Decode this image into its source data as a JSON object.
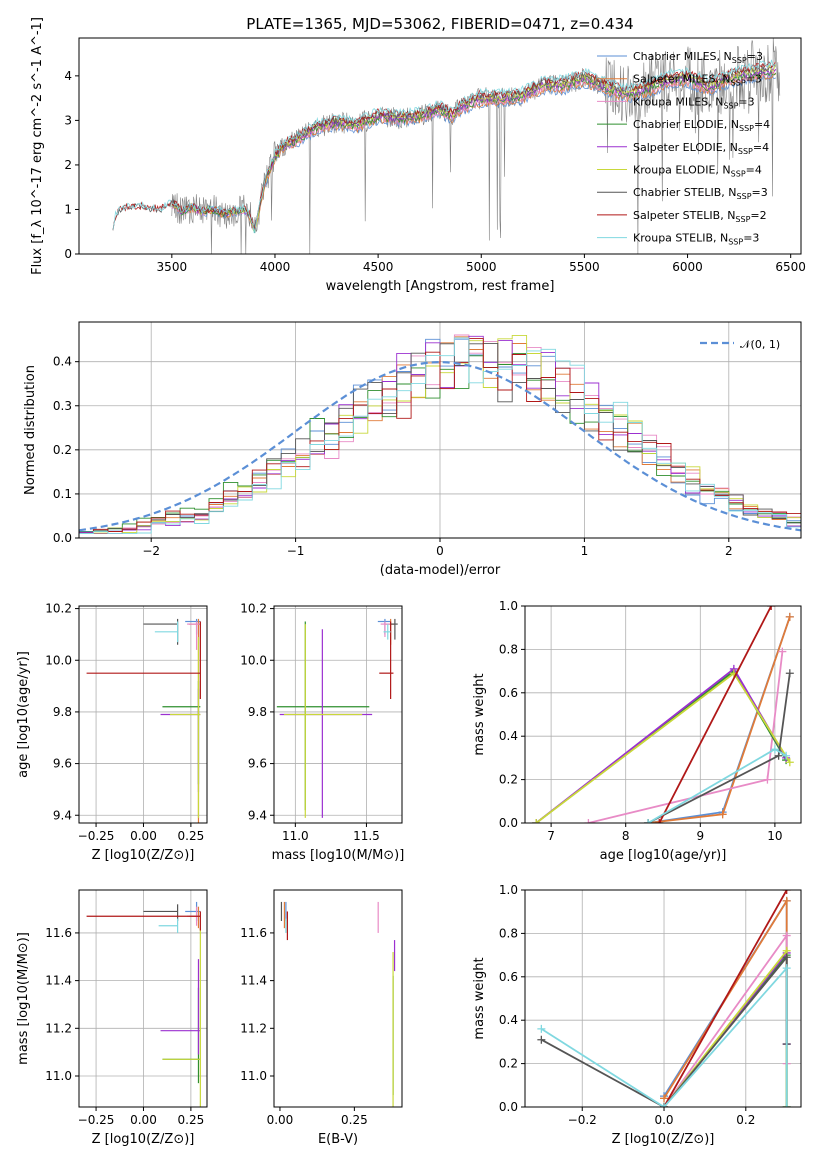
{
  "figure": {
    "title": "PLATE=1365, MJD=53062, FIBERID=0471, z=0.434",
    "series_colors": [
      "#5b8fd6",
      "#e07b39",
      "#e88bc6",
      "#2f8f2f",
      "#9b30d0",
      "#c8d83a",
      "#555555",
      "#b01818",
      "#80d8e0"
    ],
    "data_color": "#808080",
    "normal_color": "#5b8fd6",
    "legend_labels": [
      "Chabrier MILES, N_SSP=3",
      "Salpeter MILES, N_SSP=3",
      "Kroupa MILES, N_SSP=3",
      "Chabrier ELODIE, N_SSP=4",
      "Salpeter ELODIE, N_SSP=4",
      "Kroupa ELODIE, N_SSP=4",
      "Chabrier STELIB, N_SSP=3",
      "Salpeter STELIB, N_SSP=2",
      "Kroupa STELIB, N_SSP=3"
    ]
  },
  "chart_data": [
    {
      "id": "spectrum",
      "type": "line",
      "xlabel": "wavelength [Angstrom, rest frame]",
      "ylabel": "Flux [f_λ 10^-17 erg cm^-2 s^-1 A^-1]",
      "xlim": [
        3050,
        6550
      ],
      "ylim": [
        0,
        4.85
      ],
      "xticks": [
        3500,
        4000,
        4500,
        5000,
        5500,
        6000,
        6500
      ],
      "yticks": [
        0,
        1,
        2,
        3,
        4
      ],
      "continuum": {
        "x": [
          3215,
          3230,
          3260,
          3300,
          3350,
          3400,
          3450,
          3500,
          3550,
          3600,
          3650,
          3700,
          3750,
          3800,
          3850,
          3880,
          3900,
          3950,
          4000,
          4050,
          4100,
          4200,
          4300,
          4400,
          4500,
          4600,
          4700,
          4800,
          4860,
          4900,
          5000,
          5100,
          5200,
          5300,
          5400,
          5500,
          5600,
          5700,
          5800,
          5900,
          6000,
          6100,
          6200,
          6300,
          6430
        ],
        "y": [
          0.6,
          0.9,
          1.0,
          1.05,
          1.05,
          1.0,
          1.0,
          1.15,
          0.95,
          1.05,
          0.95,
          1.0,
          0.9,
          0.95,
          1.0,
          0.85,
          0.5,
          1.6,
          2.2,
          2.45,
          2.55,
          2.85,
          2.95,
          2.9,
          3.1,
          3.05,
          3.1,
          3.25,
          3.1,
          3.3,
          3.5,
          3.5,
          3.55,
          3.8,
          3.8,
          3.95,
          3.75,
          3.6,
          3.7,
          3.9,
          3.95,
          3.75,
          3.95,
          4.05,
          4.15
        ]
      },
      "data_range": [
        3500,
        6450
      ]
    },
    {
      "id": "residuals",
      "type": "line",
      "xlabel": "(data-model)/error",
      "ylabel": "Normed distribution",
      "xlim": [
        -2.5,
        2.5
      ],
      "ylim": [
        0,
        0.49
      ],
      "xticks": [
        -2,
        -1,
        0,
        1,
        2
      ],
      "yticks": [
        0.0,
        0.1,
        0.2,
        0.3,
        0.4
      ],
      "legend": "𝒩(0, 1)",
      "bins": [
        -2.5,
        2.5,
        50
      ]
    },
    {
      "id": "age-vs-Z",
      "type": "scatter",
      "xlabel": "Z [log10(Z/Z⊙)]",
      "ylabel": "age [log10(age/yr)]",
      "xlim": [
        -0.34,
        0.335
      ],
      "ylim": [
        9.37,
        10.21
      ],
      "xticks": [
        -0.25,
        0.0,
        0.25
      ],
      "yticks": [
        9.4,
        9.6,
        9.8,
        10.0,
        10.2
      ],
      "points": [
        {
          "x": 0.28,
          "y": 10.15,
          "xerr": [
            0.06,
            0.02
          ],
          "yerr": [
            0.05,
            0.01
          ]
        },
        {
          "x": 0.29,
          "y": 10.14,
          "xerr": [
            0.05,
            0.01
          ],
          "yerr": [
            0.8,
            0.02
          ]
        },
        {
          "x": 0.28,
          "y": 10.14,
          "xerr": [
            0.05,
            0.02
          ],
          "yerr": [
            0.1,
            0.01
          ]
        },
        {
          "x": 0.29,
          "y": 9.82,
          "xerr": [
            0.19,
            0.01
          ],
          "yerr": [
            0.3,
            0.1
          ]
        },
        {
          "x": 0.29,
          "y": 9.79,
          "xerr": [
            0.2,
            0.01
          ],
          "yerr": [
            0.3,
            0.1
          ]
        },
        {
          "x": 0.29,
          "y": 9.79,
          "xerr": [
            0.15,
            0.01
          ],
          "yerr": [
            0.4,
            0.3
          ]
        },
        {
          "x": 0.18,
          "y": 10.14,
          "xerr": [
            0.18,
            0.0
          ],
          "yerr": [
            0.08,
            0.02
          ]
        },
        {
          "x": 0.3,
          "y": 9.95,
          "xerr": [
            0.6,
            0.0
          ],
          "yerr": [
            0.1,
            0.2
          ]
        },
        {
          "x": 0.18,
          "y": 10.11,
          "xerr": [
            0.12,
            0.0
          ],
          "yerr": [
            0.04,
            0.04
          ]
        }
      ]
    },
    {
      "id": "age-vs-mass",
      "type": "scatter",
      "xlabel": "mass [log10(M/M⊙)]",
      "ylabel": "",
      "xlim": [
        10.85,
        11.75
      ],
      "ylim": [
        9.37,
        10.21
      ],
      "xticks": [
        11.0,
        11.5
      ],
      "yticks": [
        9.4,
        9.6,
        9.8,
        10.0,
        10.2
      ],
      "points": [
        {
          "x": 11.63,
          "y": 10.15,
          "xerr": [
            0.05,
            0.04
          ],
          "yerr": [
            0.05,
            0.01
          ]
        },
        {
          "x": 11.67,
          "y": 10.14,
          "xerr": [
            0.04,
            0.03
          ],
          "yerr": [
            0.08,
            0.02
          ]
        },
        {
          "x": 11.63,
          "y": 10.14,
          "xerr": [
            0.03,
            0.04
          ],
          "yerr": [
            0.05,
            0.01
          ]
        },
        {
          "x": 11.07,
          "y": 9.82,
          "xerr": [
            0.2,
            0.45
          ],
          "yerr": [
            0.4,
            0.33
          ]
        },
        {
          "x": 11.19,
          "y": 9.79,
          "xerr": [
            0.3,
            0.35
          ],
          "yerr": [
            0.4,
            0.33
          ]
        },
        {
          "x": 11.07,
          "y": 9.79,
          "xerr": [
            0.15,
            0.4
          ],
          "yerr": [
            0.4,
            0.35
          ]
        },
        {
          "x": 11.7,
          "y": 10.14,
          "xerr": [
            0.03,
            0.02
          ],
          "yerr": [
            0.06,
            0.02
          ]
        },
        {
          "x": 11.67,
          "y": 9.95,
          "xerr": [
            0.08,
            0.02
          ],
          "yerr": [
            0.1,
            0.2
          ]
        },
        {
          "x": 11.65,
          "y": 10.11,
          "xerr": [
            0.03,
            0.02
          ],
          "yerr": [
            0.03,
            0.03
          ]
        }
      ]
    },
    {
      "id": "weight-vs-age",
      "type": "line",
      "xlabel": "age [log10(age/yr)]",
      "ylabel": "mass weight",
      "xlim": [
        6.65,
        10.35
      ],
      "ylim": [
        0,
        1.0
      ],
      "xticks": [
        7,
        8,
        9,
        10
      ],
      "yticks": [
        0.0,
        0.2,
        0.4,
        0.6,
        0.8,
        1.0
      ],
      "series": [
        {
          "x": [
            8.3,
            9.3,
            10.2
          ],
          "y": [
            0.0,
            0.05,
            0.95
          ]
        },
        {
          "x": [
            8.3,
            9.3,
            10.2
          ],
          "y": [
            0.0,
            0.04,
            0.95
          ]
        },
        {
          "x": [
            7.5,
            9.9,
            10.1
          ],
          "y": [
            0.0,
            0.2,
            0.79
          ]
        },
        {
          "x": [
            6.8,
            9.45,
            10.15
          ],
          "y": [
            0.0,
            0.7,
            0.29
          ]
        },
        {
          "x": [
            6.8,
            9.45,
            10.15
          ],
          "y": [
            0.0,
            0.71,
            0.3
          ]
        },
        {
          "x": [
            6.8,
            9.45,
            10.2
          ],
          "y": [
            0.0,
            0.69,
            0.28
          ]
        },
        {
          "x": [
            8.3,
            10.05,
            10.2
          ],
          "y": [
            0.0,
            0.31,
            0.69
          ]
        },
        {
          "x": [
            8.45,
            9.95
          ],
          "y": [
            0.0,
            1.0
          ]
        },
        {
          "x": [
            8.3,
            10.0,
            10.15
          ],
          "y": [
            0.0,
            0.34,
            0.31
          ]
        }
      ]
    },
    {
      "id": "mass-vs-Z",
      "type": "scatter",
      "xlabel": "Z [log10(Z/Z⊙)]",
      "ylabel": "mass [log10(M/M⊙)]",
      "xlim": [
        -0.34,
        0.335
      ],
      "ylim": [
        10.87,
        11.78
      ],
      "xticks": [
        -0.25,
        0.0,
        0.25
      ],
      "yticks": [
        11.0,
        11.2,
        11.4,
        11.6
      ],
      "points": [
        {
          "x": 0.28,
          "y": 11.69,
          "xerr": [
            0.06,
            0.02
          ],
          "yerr": [
            0.04,
            0.04
          ]
        },
        {
          "x": 0.29,
          "y": 11.67,
          "xerr": [
            0.05,
            0.01
          ],
          "yerr": [
            0.05,
            0.04
          ]
        },
        {
          "x": 0.28,
          "y": 11.67,
          "xerr": [
            0.05,
            0.02
          ],
          "yerr": [
            0.04,
            0.04
          ]
        },
        {
          "x": 0.29,
          "y": 11.07,
          "xerr": [
            0.19,
            0.01
          ],
          "yerr": [
            0.1,
            0.3
          ]
        },
        {
          "x": 0.29,
          "y": 11.19,
          "xerr": [
            0.2,
            0.01
          ],
          "yerr": [
            0.1,
            0.3
          ]
        },
        {
          "x": 0.3,
          "y": 11.07,
          "xerr": [
            0.2,
            0.0
          ],
          "yerr": [
            0.2,
            0.55
          ]
        },
        {
          "x": 0.18,
          "y": 11.69,
          "xerr": [
            0.18,
            0.0
          ],
          "yerr": [
            0.04,
            0.03
          ]
        },
        {
          "x": 0.3,
          "y": 11.67,
          "xerr": [
            0.6,
            0.0
          ],
          "yerr": [
            0.06,
            0.02
          ]
        },
        {
          "x": 0.18,
          "y": 11.63,
          "xerr": [
            0.1,
            0.0
          ],
          "yerr": [
            0.03,
            0.03
          ]
        }
      ]
    },
    {
      "id": "mass-vs-ebv",
      "type": "scatter",
      "xlabel": "E(B-V)",
      "ylabel": "",
      "xlim": [
        -0.02,
        0.41
      ],
      "ylim": [
        10.87,
        11.78
      ],
      "xticks": [
        0.0,
        0.25
      ],
      "yticks": [
        11.0,
        11.2,
        11.4,
        11.6
      ],
      "points": [
        {
          "x": 0.02,
          "y": 11.69,
          "yerr": [
            0.04,
            0.04
          ]
        },
        {
          "x": 0.015,
          "y": 11.67,
          "yerr": [
            0.05,
            0.06
          ]
        },
        {
          "x": 0.33,
          "y": 11.67,
          "yerr": [
            0.07,
            0.06
          ]
        },
        {
          "x": 0.38,
          "y": 11.07,
          "yerr": [
            0.15,
            0.35
          ]
        },
        {
          "x": 0.385,
          "y": 11.49,
          "yerr": [
            0.05,
            0.08
          ]
        },
        {
          "x": 0.38,
          "y": 11.07,
          "yerr": [
            0.2,
            0.45
          ]
        },
        {
          "x": 0.005,
          "y": 11.69,
          "yerr": [
            0.04,
            0.04
          ]
        },
        {
          "x": 0.025,
          "y": 11.67,
          "yerr": [
            0.1,
            0.02
          ]
        },
        {
          "x": 0.02,
          "y": 11.63,
          "yerr": [
            0.03,
            0.03
          ]
        }
      ]
    },
    {
      "id": "weight-vs-Z",
      "type": "line",
      "xlabel": "Z [log10(Z/Z⊙)]",
      "ylabel": "mass weight",
      "xlim": [
        -0.34,
        0.335
      ],
      "ylim": [
        0,
        1.0
      ],
      "xticks": [
        -0.2,
        0.0,
        0.2
      ],
      "yticks": [
        0.0,
        0.2,
        0.4,
        0.6,
        0.8,
        1.0
      ],
      "series": [
        {
          "x": [
            0.0,
            0.3,
            0.3
          ],
          "y": [
            0.05,
            0.95,
            0.0
          ]
        },
        {
          "x": [
            0.0,
            0.3,
            0.3
          ],
          "y": [
            0.04,
            0.95,
            0.0
          ]
        },
        {
          "x": [
            0.0,
            0.3,
            0.3
          ],
          "y": [
            0.0,
            0.79,
            0.2
          ]
        },
        {
          "x": [
            0.0,
            0.3,
            0.3
          ],
          "y": [
            0.0,
            0.7,
            0.0
          ]
        },
        {
          "x": [
            0.0,
            0.3,
            0.3
          ],
          "y": [
            0.0,
            0.71,
            0.29
          ]
        },
        {
          "x": [
            0.0,
            0.3,
            0.3
          ],
          "y": [
            0.0,
            0.72,
            0.0
          ]
        },
        {
          "x": [
            -0.3,
            0.0,
            0.3,
            0.3
          ],
          "y": [
            0.31,
            0.0,
            0.69,
            0.29
          ]
        },
        {
          "x": [
            0.0,
            0.3
          ],
          "y": [
            0.0,
            1.0
          ]
        },
        {
          "x": [
            -0.3,
            0.0,
            0.3,
            0.3
          ],
          "y": [
            0.36,
            0.0,
            0.64,
            0.0
          ]
        }
      ]
    }
  ]
}
